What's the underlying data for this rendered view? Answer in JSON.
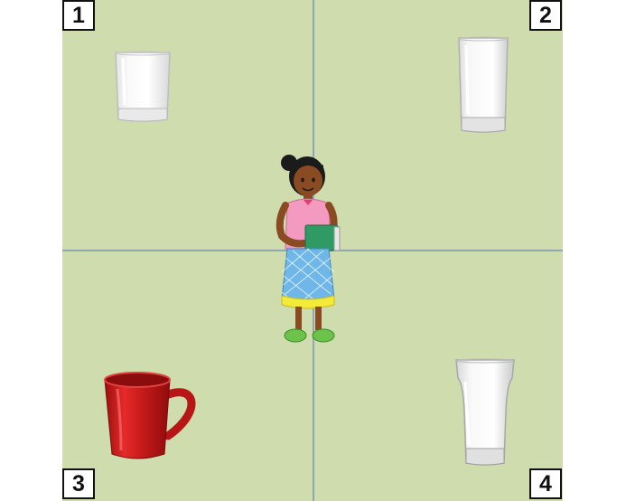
{
  "quadrants": [
    {
      "number": "1",
      "item": "short-glass"
    },
    {
      "number": "2",
      "item": "tall-glass"
    },
    {
      "number": "3",
      "item": "red-mug"
    },
    {
      "number": "4",
      "item": "pint-glass"
    }
  ],
  "center_figure": "girl-holding-books",
  "colors": {
    "background": "#cfdcad",
    "grid_line": "#8fa6b4",
    "mug": "#d61f1f"
  }
}
